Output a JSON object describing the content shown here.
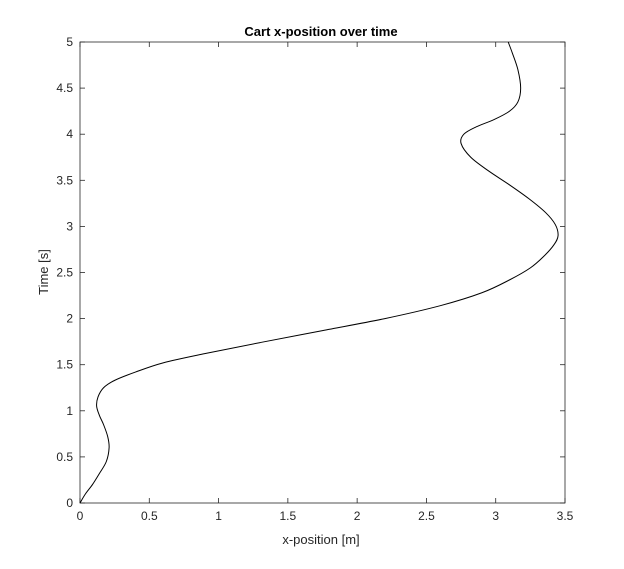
{
  "chart_data": {
    "type": "line",
    "title": "Cart x-position over time",
    "xlabel": "x-position [m]",
    "ylabel": "Time [s]",
    "xlim": [
      0,
      3.5
    ],
    "ylim": [
      0,
      5
    ],
    "xticks": [
      "0",
      "0.5",
      "1",
      "1.5",
      "2",
      "2.5",
      "3",
      "3.5"
    ],
    "yticks": [
      "0",
      "0.5",
      "1",
      "1.5",
      "2",
      "2.5",
      "3",
      "3.5",
      "4",
      "4.5",
      "5"
    ],
    "grid": false,
    "box": true,
    "line_color": "#000000",
    "series": [
      {
        "x": [
          0.0,
          0.04,
          0.09,
          0.14,
          0.19,
          0.21,
          0.2,
          0.17,
          0.14,
          0.12,
          0.13,
          0.17,
          0.25,
          0.4,
          0.6,
          0.9,
          1.3,
          1.75,
          2.2,
          2.6,
          2.9,
          3.1,
          3.25,
          3.35,
          3.42,
          3.45,
          3.43,
          3.36,
          3.24,
          3.1,
          2.95,
          2.82,
          2.75,
          2.77,
          2.86,
          2.99,
          3.1,
          3.16,
          3.18,
          3.16,
          3.12,
          3.09
        ],
        "y": [
          0.0,
          0.1,
          0.2,
          0.32,
          0.45,
          0.6,
          0.72,
          0.85,
          0.95,
          1.05,
          1.15,
          1.25,
          1.33,
          1.42,
          1.52,
          1.62,
          1.74,
          1.87,
          2.0,
          2.14,
          2.28,
          2.42,
          2.55,
          2.68,
          2.8,
          2.9,
          3.02,
          3.15,
          3.3,
          3.45,
          3.6,
          3.75,
          3.9,
          4.0,
          4.08,
          4.16,
          4.25,
          4.35,
          4.5,
          4.7,
          4.88,
          5.0
        ]
      }
    ]
  }
}
